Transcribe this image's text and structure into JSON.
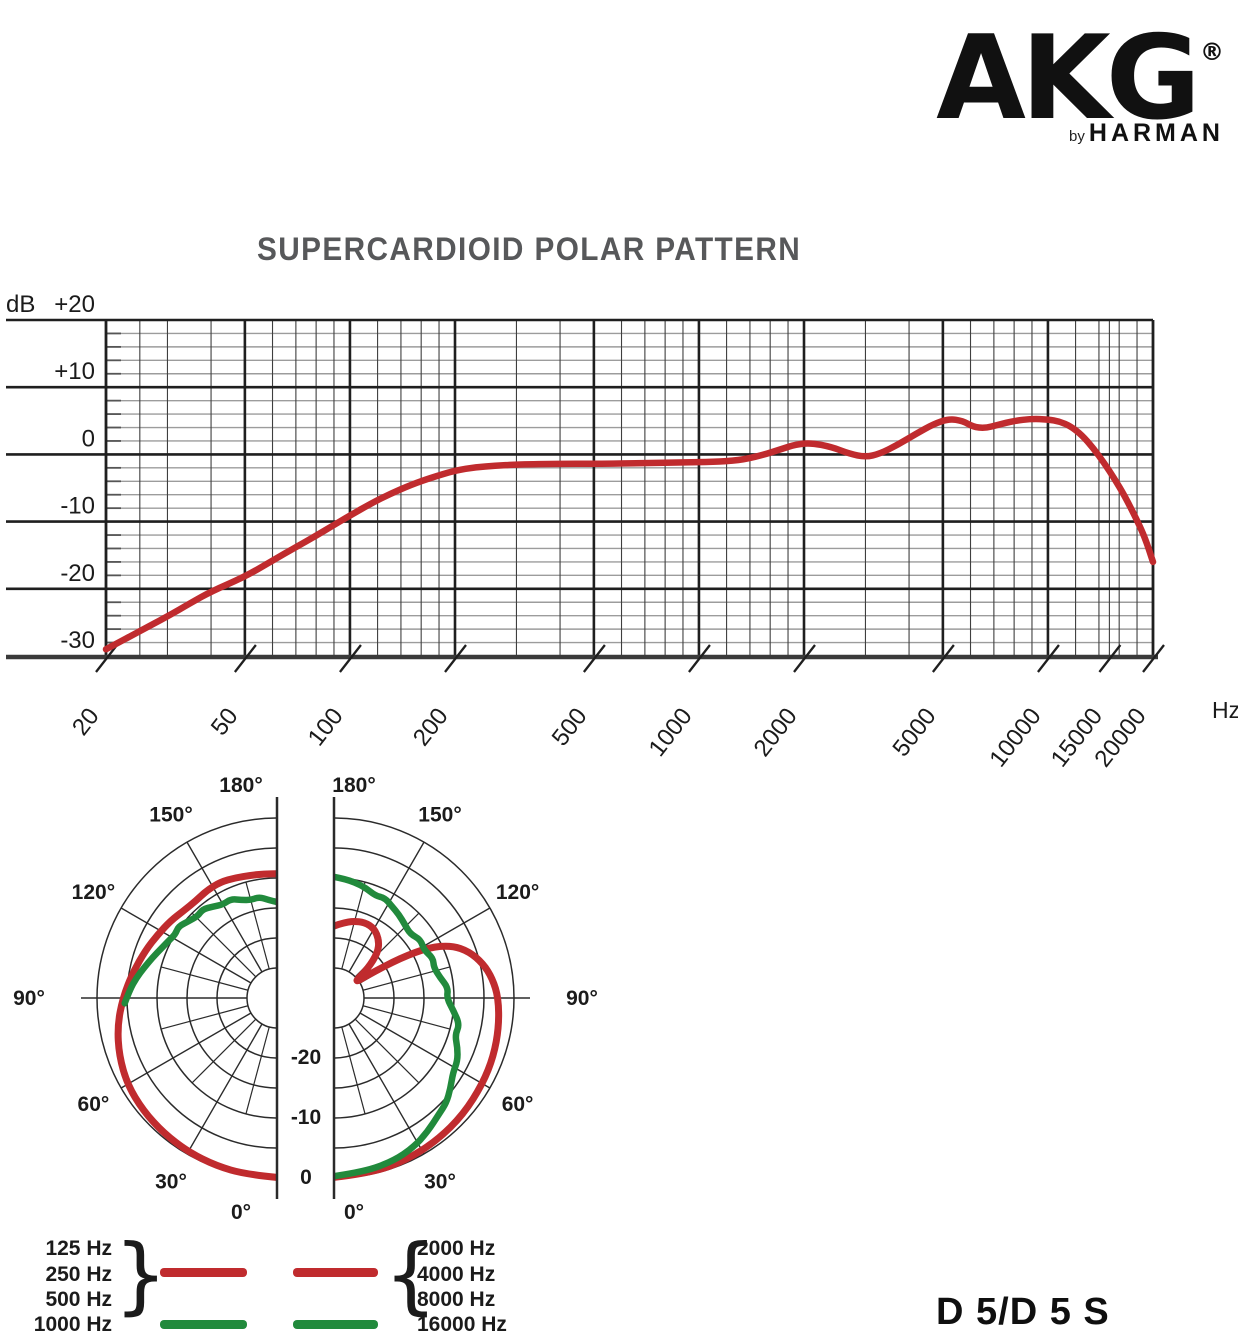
{
  "logo": {
    "brand": "AKG",
    "registered": "®",
    "by": "by",
    "harman": "HARMAN"
  },
  "title": "SUPERCARDIOID POLAR PATTERN",
  "model": "D 5/D 5 S",
  "colors": {
    "red": "#c02b2e",
    "green": "#218a3c",
    "grid_major": "#1f1f1f",
    "grid_minor_h": "#9c9c9c",
    "grid_minor_v": "#3f3f3f",
    "axis": "#3a3a3a",
    "text": "#1b1b1b"
  },
  "legend": {
    "brace_close": "}",
    "brace_open": "{",
    "low_labels": [
      "125 Hz",
      "250 Hz",
      "500 Hz"
    ],
    "low_green_label": "1000 Hz",
    "high_labels": [
      "2000 Hz",
      "4000 Hz",
      "8000 Hz"
    ],
    "high_green_label": "16000 Hz"
  },
  "chart_data": [
    {
      "type": "line",
      "name": "frequency-response",
      "xscale": "log",
      "x_unit": "Hz",
      "y_unit": "dB",
      "xlim": [
        20,
        20000
      ],
      "ylim": [
        -30,
        20
      ],
      "x_ticks": [
        20,
        50,
        100,
        200,
        500,
        1000,
        2000,
        5000,
        10000,
        15000,
        20000
      ],
      "x_major_gridlines": [
        50,
        100,
        200,
        500,
        1000,
        2000,
        5000,
        10000
      ],
      "x_minor_gridlines": [
        25,
        30,
        40,
        60,
        70,
        80,
        90,
        120,
        140,
        160,
        180,
        300,
        400,
        600,
        700,
        800,
        900,
        1200,
        1400,
        1600,
        1800,
        3000,
        4000,
        6000,
        7000,
        8000,
        9000,
        12000,
        14000,
        15000,
        16000,
        18000
      ],
      "y_ticks": [
        {
          "label": "+20",
          "db": 20
        },
        {
          "label": "+10",
          "db": 10
        },
        {
          "label": "0",
          "db": 0
        },
        {
          "label": "-10",
          "db": -10
        },
        {
          "label": "-20",
          "db": -20
        },
        {
          "label": "-30",
          "db": -30
        }
      ],
      "y_minor_step": 2,
      "series": [
        {
          "name": "response",
          "color": "red",
          "points": [
            [
              20,
              -29
            ],
            [
              25,
              -26.3
            ],
            [
              30,
              -24.1
            ],
            [
              35,
              -22.1
            ],
            [
              40,
              -20.4
            ],
            [
              50,
              -18.2
            ],
            [
              60,
              -15.8
            ],
            [
              70,
              -13.8
            ],
            [
              80,
              -12.1
            ],
            [
              90,
              -10.5
            ],
            [
              100,
              -9.1
            ],
            [
              115,
              -7.3
            ],
            [
              130,
              -5.9
            ],
            [
              150,
              -4.5
            ],
            [
              170,
              -3.5
            ],
            [
              200,
              -2.4
            ],
            [
              230,
              -1.9
            ],
            [
              260,
              -1.7
            ],
            [
              300,
              -1.5
            ],
            [
              400,
              -1.4
            ],
            [
              500,
              -1.4
            ],
            [
              700,
              -1.3
            ],
            [
              900,
              -1.2
            ],
            [
              1100,
              -1.1
            ],
            [
              1300,
              -0.9
            ],
            [
              1500,
              -0.2
            ],
            [
              1700,
              0.7
            ],
            [
              1900,
              1.5
            ],
            [
              2100,
              1.7
            ],
            [
              2400,
              1.1
            ],
            [
              2700,
              0.1
            ],
            [
              3000,
              -0.4
            ],
            [
              3300,
              0.1
            ],
            [
              3700,
              1.4
            ],
            [
              4200,
              3.1
            ],
            [
              4700,
              4.5
            ],
            [
              5200,
              5.3
            ],
            [
              5700,
              5.0
            ],
            [
              6100,
              4.1
            ],
            [
              6600,
              3.9
            ],
            [
              7200,
              4.4
            ],
            [
              8000,
              5.0
            ],
            [
              9000,
              5.3
            ],
            [
              10000,
              5.2
            ],
            [
              10800,
              4.9
            ],
            [
              11600,
              4.2
            ],
            [
              12500,
              2.9
            ],
            [
              13500,
              0.9
            ],
            [
              14500,
              -1.3
            ],
            [
              15500,
              -3.6
            ],
            [
              16600,
              -6.2
            ],
            [
              18000,
              -9.8
            ],
            [
              19000,
              -12.5
            ],
            [
              20000,
              -16
            ]
          ]
        }
      ]
    },
    {
      "type": "polar",
      "name": "polar-pattern",
      "angle_labels": [
        "0°",
        "30°",
        "60°",
        "90°",
        "120°",
        "150°",
        "180°"
      ],
      "angle_values": [
        0,
        30,
        60,
        90,
        120,
        150,
        180
      ],
      "radial_labels": [
        {
          "label": "-20",
          "db": -20
        },
        {
          "label": "-10",
          "db": -10
        },
        {
          "label": "0",
          "db": 0
        }
      ],
      "rings_db": [
        -25,
        -20,
        -15,
        -10,
        -5,
        0
      ],
      "halves": [
        {
          "side": "left",
          "series": [
            {
              "name": "125-500 Hz",
              "color": "red",
              "points": [
                [
                  0,
                  -0.1
                ],
                [
                  10,
                  -0.15
                ],
                [
                  20,
                  -0.25
                ],
                [
                  30,
                  -0.4
                ],
                [
                  40,
                  -0.6
                ],
                [
                  50,
                  -0.85
                ],
                [
                  60,
                  -1.2
                ],
                [
                  70,
                  -2.0
                ],
                [
                  80,
                  -3.0
                ],
                [
                  90,
                  -4.3
                ],
                [
                  100,
                  -5.6
                ],
                [
                  110,
                  -6.7
                ],
                [
                  118,
                  -7.5
                ],
                [
                  126,
                  -8.1
                ],
                [
                  133,
                  -8.7
                ],
                [
                  140,
                  -8.9
                ],
                [
                  147,
                  -8.6
                ],
                [
                  154,
                  -8.5
                ],
                [
                  161,
                  -8.8
                ],
                [
                  168,
                  -9.1
                ],
                [
                  174,
                  -9.2
                ],
                [
                  180,
                  -9.3
                ]
              ]
            },
            {
              "name": "1000 Hz",
              "color": "green",
              "points": [
                [
                  88,
                  -4.6
                ],
                [
                  93,
                  -5.4
                ],
                [
                  98,
                  -6.3
                ],
                [
                  103,
                  -7.3
                ],
                [
                  108,
                  -8.2
                ],
                [
                  113,
                  -9.0
                ],
                [
                  118,
                  -9.6
                ],
                [
                  122,
                  -10.0
                ],
                [
                  126,
                  -9.7
                ],
                [
                  131,
                  -10.5
                ],
                [
                  136,
                  -11.0
                ],
                [
                  140,
                  -10.7
                ],
                [
                  145,
                  -11.4
                ],
                [
                  150,
                  -12.0
                ],
                [
                  155,
                  -11.8
                ],
                [
                  160,
                  -12.6
                ],
                [
                  165,
                  -13.1
                ],
                [
                  170,
                  -12.9
                ],
                [
                  175,
                  -13.6
                ],
                [
                  180,
                  -14.0
                ]
              ]
            }
          ]
        },
        {
          "side": "right",
          "series": [
            {
              "name": "2000-8000 Hz",
              "color": "red",
              "points": [
                [
                  0,
                  -0.1
                ],
                [
                  12,
                  -0.2
                ],
                [
                  24,
                  -0.4
                ],
                [
                  36,
                  -0.7
                ],
                [
                  48,
                  -1.0
                ],
                [
                  60,
                  -1.4
                ],
                [
                  70,
                  -1.7
                ],
                [
                  80,
                  -2.1
                ],
                [
                  90,
                  -2.6
                ],
                [
                  97,
                  -3.4
                ],
                [
                  103,
                  -4.5
                ],
                [
                  109,
                  -6.2
                ],
                [
                  114,
                  -8.5
                ],
                [
                  118,
                  -12.0
                ],
                [
                  121,
                  -17.0
                ],
                [
                  124,
                  -23.0
                ],
                [
                  127,
                  -26.0
                ],
                [
                  131,
                  -22.5
                ],
                [
                  136,
                  -19.5
                ],
                [
                  142,
                  -17.8
                ],
                [
                  150,
                  -16.6
                ],
                [
                  158,
                  -16.4
                ],
                [
                  166,
                  -16.8
                ],
                [
                  173,
                  -17.4
                ],
                [
                  180,
                  -18.0
                ]
              ]
            },
            {
              "name": "16000 Hz",
              "color": "green",
              "points": [
                [
                  0,
                  -0.3
                ],
                [
                  10,
                  -0.6
                ],
                [
                  20,
                  -1.1
                ],
                [
                  28,
                  -1.8
                ],
                [
                  35,
                  -2.8
                ],
                [
                  42,
                  -3.9
                ],
                [
                  47,
                  -4.4
                ],
                [
                  52,
                  -5.4
                ],
                [
                  58,
                  -6.6
                ],
                [
                  63,
                  -6.9
                ],
                [
                  68,
                  -7.8
                ],
                [
                  73,
                  -8.9
                ],
                [
                  78,
                  -8.6
                ],
                [
                  84,
                  -10.0
                ],
                [
                  90,
                  -11.2
                ],
                [
                  95,
                  -10.9
                ],
                [
                  101,
                  -12.0
                ],
                [
                  107,
                  -12.6
                ],
                [
                  112,
                  -12.2
                ],
                [
                  118,
                  -13.0
                ],
                [
                  124,
                  -12.6
                ],
                [
                  130,
                  -13.4
                ],
                [
                  136,
                  -13.0
                ],
                [
                  142,
                  -12.4
                ],
                [
                  148,
                  -11.9
                ],
                [
                  153,
                  -11.3
                ],
                [
                  158,
                  -11.6
                ],
                [
                  164,
                  -10.9
                ],
                [
                  170,
                  -10.4
                ],
                [
                  175,
                  -10.1
                ],
                [
                  180,
                  -9.8
                ]
              ]
            }
          ]
        }
      ]
    }
  ]
}
